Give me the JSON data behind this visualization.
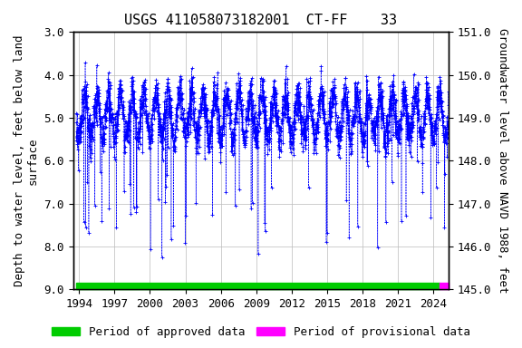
{
  "title": "USGS 411058073182001  CT-FF    33",
  "ylabel_left": "Depth to water level, feet below land\nsurface",
  "ylabel_right": "Groundwater level above NAVD 1988, feet",
  "ylim_left": [
    9.0,
    3.0
  ],
  "ylim_right": [
    145.0,
    151.0
  ],
  "xlim": [
    1993.5,
    2025.3
  ],
  "yticks_left": [
    3.0,
    4.0,
    5.0,
    6.0,
    7.0,
    8.0,
    9.0
  ],
  "yticks_right": [
    145.0,
    146.0,
    147.0,
    148.0,
    149.0,
    150.0,
    151.0
  ],
  "xticks": [
    1994,
    1997,
    2000,
    2003,
    2006,
    2009,
    2012,
    2015,
    2018,
    2021,
    2024
  ],
  "data_color": "#0000FF",
  "approved_color": "#00CC00",
  "provisional_color": "#FF00FF",
  "approved_start": 1993.75,
  "approved_end": 2024.55,
  "provisional_start": 2024.55,
  "provisional_end": 2025.3,
  "bar_y": 9.0,
  "bar_thickness": 0.15,
  "title_fontsize": 11,
  "label_fontsize": 9,
  "tick_fontsize": 9,
  "legend_fontsize": 9,
  "background_color": "#ffffff",
  "grid_color": "#bbbbbb",
  "land_surface_elev": 154.0
}
